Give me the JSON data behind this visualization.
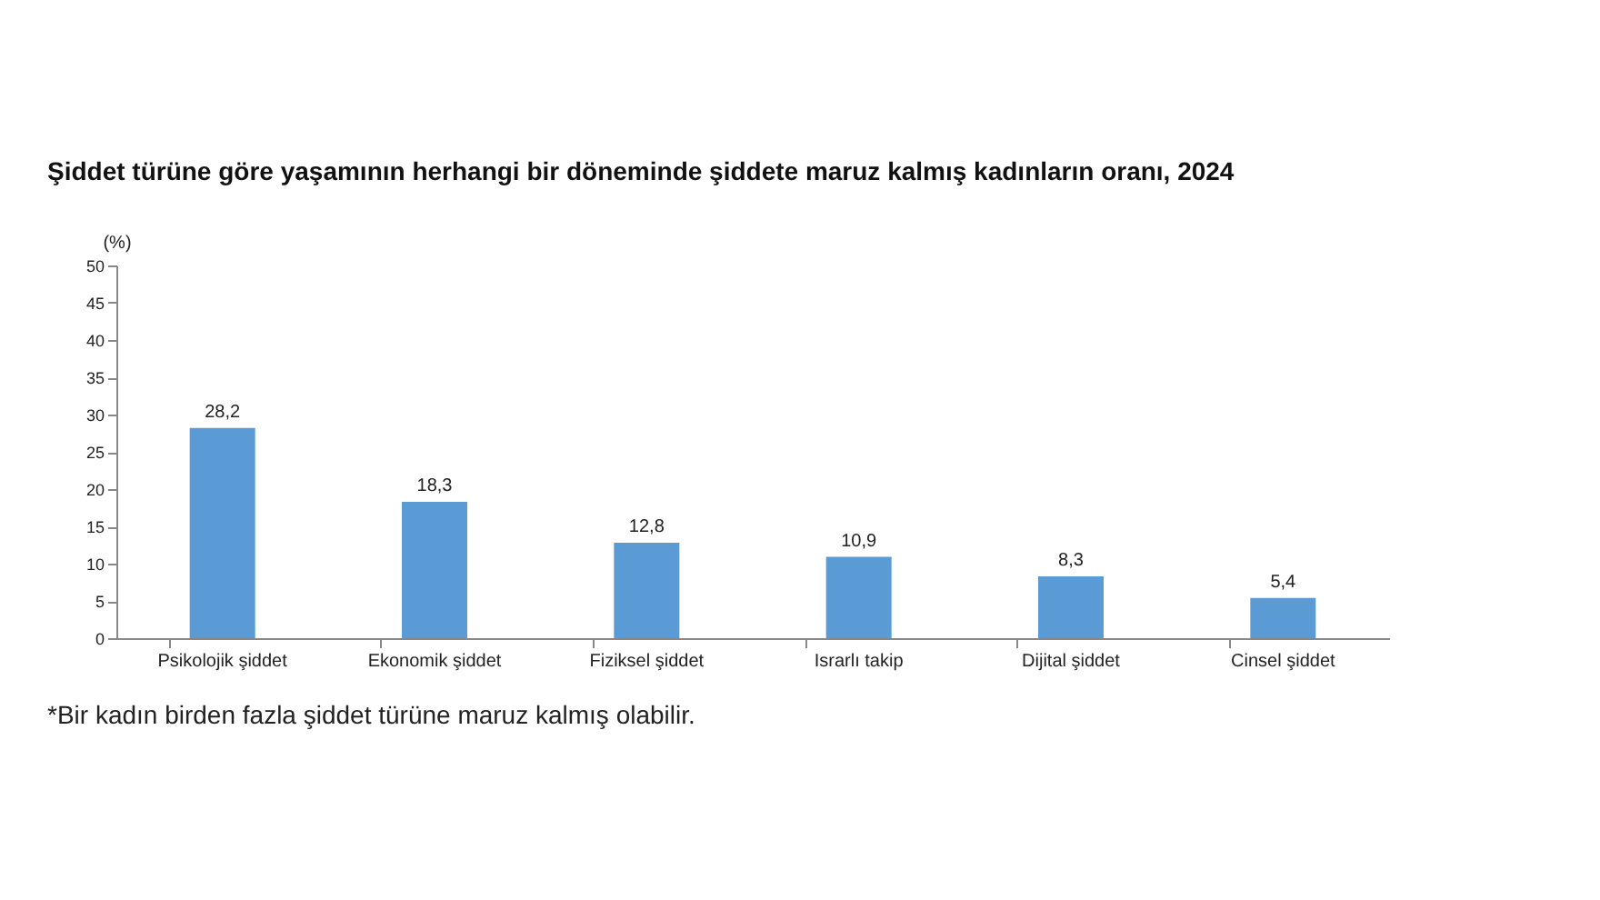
{
  "chart_data": {
    "type": "bar",
    "title": "Şiddet türüne göre yaşamının herhangi bir döneminde şiddete maruz kalmış kadınların oranı, 2024",
    "ylabel": "(%)",
    "categories": [
      "Psikolojik şiddet",
      "Ekonomik şiddet",
      "Fiziksel şiddet",
      "Israrlı takip",
      "Dijital şiddet",
      "Cinsel şiddet"
    ],
    "values": [
      28.2,
      18.3,
      12.8,
      10.9,
      8.3,
      5.4
    ],
    "color": "#5b9bd5",
    "value_labels": [
      "28,2",
      "18,3",
      "12,8",
      "10,9",
      "8,3",
      "5,4"
    ],
    "ylim": [
      0,
      50
    ],
    "yticks": [
      0,
      5,
      10,
      15,
      20,
      25,
      30,
      35,
      40,
      45,
      50
    ],
    "grid": false,
    "annotations": [
      "*Bir kadın birden fazla şiddet türüne maruz kalmış olabilir."
    ]
  }
}
